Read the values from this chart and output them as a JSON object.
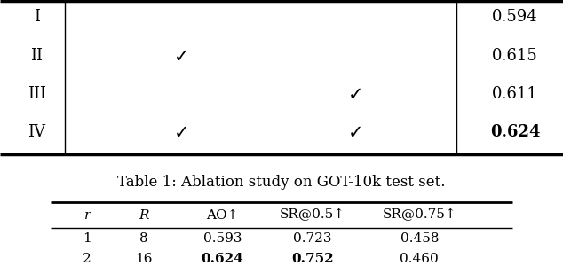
{
  "caption": "Table 1: Ablation study on GOT-10k test set.",
  "caption_fontsize": 12,
  "table2_headers": [
    "r",
    "R",
    "AO↑",
    "SR@0.5↑",
    "SR@0.75↑"
  ],
  "table2_rows": [
    [
      "1",
      "8",
      "0.593",
      "0.723",
      "0.458"
    ],
    [
      "2",
      "16",
      "0.624",
      "0.752",
      "0.460"
    ]
  ],
  "table2_bold_cells": [
    [
      1,
      2
    ],
    [
      1,
      3
    ]
  ],
  "top_row_labels": [
    "I",
    "II",
    "III",
    "IV"
  ],
  "top_check_col2": [
    false,
    true,
    false,
    true
  ],
  "top_check_col4": [
    false,
    false,
    true,
    true
  ],
  "top_ao_vals": [
    "0.594",
    "0.615",
    "0.611",
    "0.624"
  ],
  "top_ao_bold": [
    false,
    false,
    false,
    true
  ],
  "bg_color": "#ffffff"
}
